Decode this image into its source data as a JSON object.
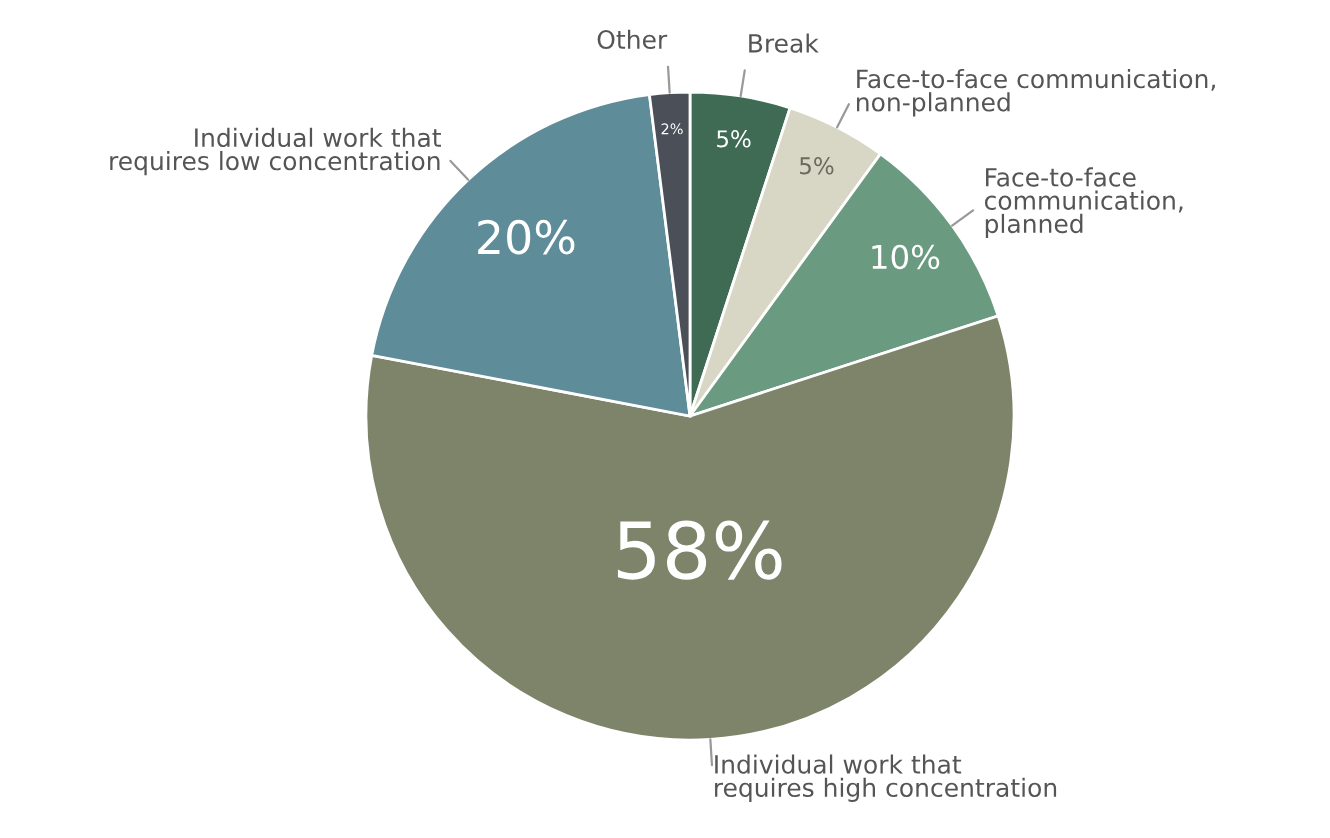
{
  "chart_data": {
    "type": "pie",
    "categories": [
      "Break",
      "Face-to-face communication,\nnon-planned",
      "Face-to-face\ncommunication,\nplanned",
      "Individual work that\nrequires high concentration",
      "Individual work that\nrequires low concentration",
      "Other"
    ],
    "values": [
      5,
      5,
      10,
      58,
      20,
      2
    ],
    "colors": [
      "#3f6b55",
      "#d8d6c4",
      "#6a9a80",
      "#7d8469",
      "#5f8c99",
      "#4a4f58"
    ],
    "value_labels": [
      "5%",
      "5%",
      "10%",
      "58%",
      "20%",
      "2%"
    ]
  }
}
